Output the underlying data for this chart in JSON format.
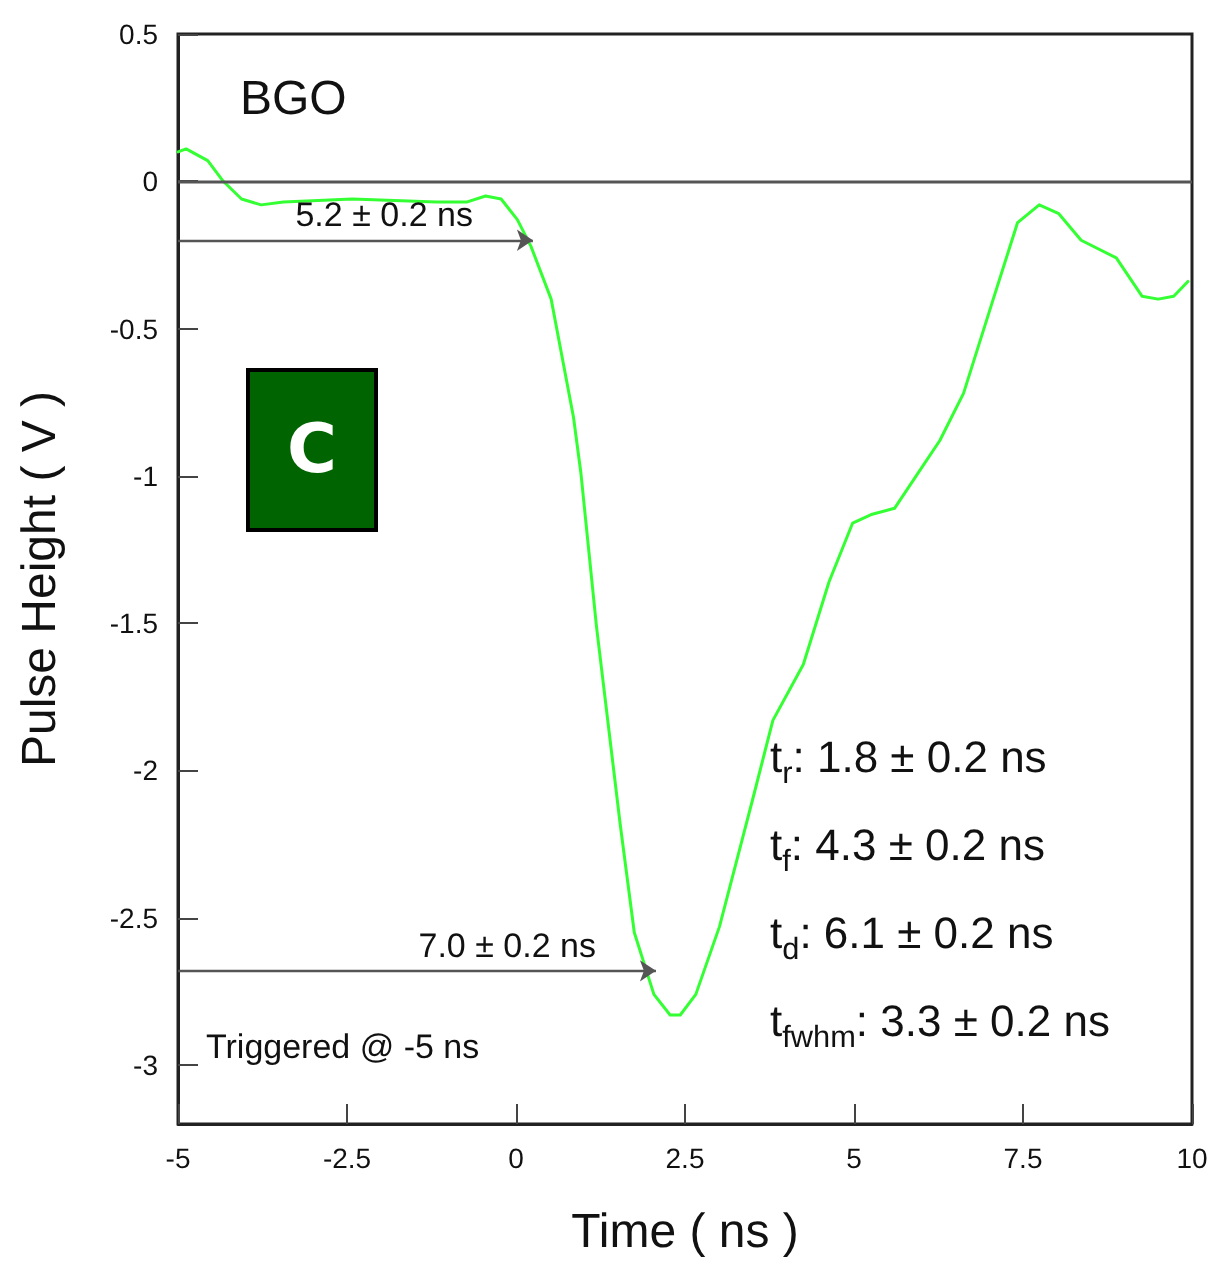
{
  "chart_data": {
    "type": "line",
    "xlabel": "Time ( ns )",
    "ylabel": "Pulse Height ( V )",
    "xlim": [
      -5,
      10
    ],
    "xticks": [
      -5,
      -2.5,
      0,
      2.5,
      5,
      7.5,
      10
    ],
    "ylim": [
      -3.2,
      0.5
    ],
    "yticks": [
      -3,
      -2.5,
      -2,
      -1.5,
      -1,
      -0.5,
      0,
      0.5
    ],
    "grid": false,
    "marker": "none",
    "line_style": "solid",
    "series": [
      {
        "color": "#33ff33",
        "x": [
          -5,
          -4.88,
          -4.56,
          -4.33,
          -4.06,
          -3.77,
          -3.44,
          -2.42,
          -1.18,
          -0.72,
          -0.45,
          -0.22,
          0.02,
          0.22,
          0.52,
          0.85,
          0.96,
          1.19,
          1.54,
          1.75,
          2.04,
          2.28,
          2.43,
          2.66,
          3.01,
          3.34,
          3.51,
          3.8,
          4.25,
          4.63,
          4.98,
          5.27,
          5.6,
          5.95,
          6.27,
          6.62,
          7.06,
          7.42,
          7.74,
          8.03,
          8.36,
          8.88,
          9.26,
          9.5,
          9.73,
          9.94
        ],
        "values": [
          0.1,
          0.11,
          0.07,
          0.0,
          -0.06,
          -0.08,
          -0.07,
          -0.06,
          -0.07,
          -0.07,
          -0.05,
          -0.06,
          -0.13,
          -0.22,
          -0.4,
          -0.8,
          -0.99,
          -1.51,
          -2.18,
          -2.55,
          -2.76,
          -2.83,
          -2.83,
          -2.76,
          -2.53,
          -2.24,
          -2.09,
          -1.83,
          -1.64,
          -1.36,
          -1.16,
          -1.13,
          -1.11,
          -0.99,
          -0.88,
          -0.72,
          -0.4,
          -0.14,
          -0.08,
          -0.11,
          -0.2,
          -0.26,
          -0.39,
          -0.4,
          -0.39,
          -0.34
        ]
      }
    ],
    "ref_lines": [
      {
        "axis": "y",
        "value": 0,
        "color": "#555555"
      }
    ],
    "annotations": [
      "BGO",
      "C",
      {
        "text": "5.2 ± 0.2 ns",
        "x": 0.25,
        "y": -0.2
      },
      {
        "text": "7.0 ± 0.2 ns",
        "x": 2.07,
        "y": -2.68
      },
      "Triggered @ -5 ns",
      "t$_{r}$:  1.8 ± 0.2 ns",
      "t$_{f}$:  4.3 ± 0.2 ns",
      "t$_{d}$:  6.1 ± 0.2 ns",
      "t$_{fwhm}$: 3.3 ± 0.2 ns"
    ]
  }
}
